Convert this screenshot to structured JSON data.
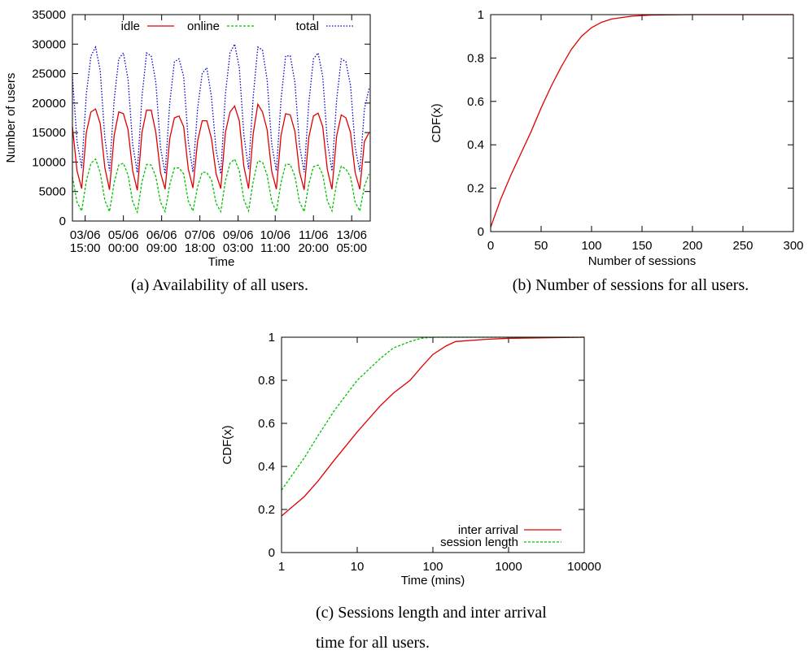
{
  "chart_data": [
    {
      "type": "line",
      "xlabel": "Time",
      "ylabel": "Number of users",
      "caption": "(a)  Availability of all users.",
      "xlim": [
        "03/06 04:00",
        "13/06 21:00"
      ],
      "xticks": [
        "03/06 15:00",
        "05/06 00:00",
        "06/06 09:00",
        "07/06 18:00",
        "09/06 03:00",
        "10/06 11:00",
        "11/06 20:00",
        "13/06 05:00"
      ],
      "ylim": [
        0,
        35000
      ],
      "yticks": [
        0,
        5000,
        10000,
        15000,
        20000,
        25000,
        30000,
        35000
      ],
      "legend": "top",
      "x": [
        "03/06 04:00",
        "03/06 08:00",
        "03/06 12:00",
        "03/06 16:00",
        "03/06 20:00",
        "04/06 00:00",
        "04/06 04:00",
        "04/06 08:00",
        "04/06 12:00",
        "04/06 16:00",
        "04/06 20:00",
        "05/06 00:00",
        "05/06 04:00",
        "05/06 08:00",
        "05/06 12:00",
        "05/06 16:00",
        "05/06 20:00",
        "06/06 00:00",
        "06/06 04:00",
        "06/06 08:00",
        "06/06 12:00",
        "06/06 16:00",
        "06/06 20:00",
        "07/06 00:00",
        "07/06 04:00",
        "07/06 08:00",
        "07/06 12:00",
        "07/06 16:00",
        "07/06 20:00",
        "08/06 00:00",
        "08/06 04:00",
        "08/06 08:00",
        "08/06 12:00",
        "08/06 16:00",
        "08/06 20:00",
        "09/06 00:00",
        "09/06 04:00",
        "09/06 08:00",
        "09/06 12:00",
        "09/06 16:00",
        "09/06 20:00",
        "10/06 00:00",
        "10/06 04:00",
        "10/06 08:00",
        "10/06 12:00",
        "10/06 16:00",
        "10/06 20:00",
        "11/06 00:00",
        "11/06 04:00",
        "11/06 08:00",
        "11/06 12:00",
        "11/06 16:00",
        "11/06 20:00",
        "12/06 00:00",
        "12/06 04:00",
        "12/06 08:00",
        "12/06 12:00",
        "12/06 16:00",
        "12/06 20:00",
        "13/06 00:00",
        "13/06 04:00",
        "13/06 08:00",
        "13/06 12:00",
        "13/06 16:00",
        "13/06 20:00"
      ],
      "series": [
        {
          "name": "idle",
          "color": "#e00000",
          "dash": "none",
          "values": [
            16000,
            8500,
            5500,
            15000,
            18500,
            19000,
            16500,
            9000,
            5300,
            14500,
            18500,
            18200,
            15500,
            8500,
            5200,
            15000,
            18800,
            18800,
            15000,
            8200,
            5400,
            14000,
            17500,
            17800,
            16000,
            8800,
            5600,
            13500,
            17000,
            17000,
            14000,
            8000,
            5500,
            15000,
            18500,
            19500,
            17000,
            9200,
            5500,
            14800,
            19800,
            18500,
            15500,
            8400,
            5400,
            14500,
            18200,
            18000,
            15200,
            8300,
            5300,
            14200,
            17800,
            18300,
            16000,
            8700,
            5400,
            14400,
            18000,
            17500,
            15000,
            8200,
            5400,
            13500,
            15000
          ]
        },
        {
          "name": "online",
          "color": "#00c000",
          "dash": "3,2",
          "values": [
            7500,
            3200,
            1700,
            6800,
            9800,
            10500,
            8200,
            3500,
            1600,
            6500,
            9500,
            9800,
            7800,
            3300,
            1500,
            6600,
            9600,
            9500,
            7500,
            3200,
            1600,
            6200,
            9000,
            9000,
            8000,
            3400,
            1700,
            5800,
            8300,
            8200,
            7000,
            3000,
            1600,
            6800,
            9800,
            10500,
            8500,
            3600,
            1700,
            6700,
            10200,
            10000,
            7800,
            3300,
            1600,
            6500,
            9600,
            9600,
            7600,
            3200,
            1600,
            6300,
            9200,
            9500,
            7900,
            3400,
            1700,
            6400,
            9300,
            8800,
            7500,
            3200,
            1700,
            5900,
            8000
          ]
        },
        {
          "name": "total",
          "color": "#0000d0",
          "dash": "1.5,2",
          "values": [
            24500,
            13500,
            9000,
            21500,
            28000,
            29500,
            25500,
            14000,
            8500,
            20500,
            27500,
            28500,
            24000,
            13000,
            8200,
            21000,
            28500,
            28000,
            23500,
            12500,
            8000,
            20000,
            27000,
            27500,
            24500,
            13500,
            8300,
            19000,
            25000,
            26000,
            21000,
            12000,
            8000,
            21500,
            28500,
            30000,
            26000,
            14500,
            8800,
            21000,
            29500,
            29000,
            24000,
            13000,
            8500,
            20500,
            28000,
            28000,
            23500,
            12800,
            8300,
            20000,
            27500,
            28500,
            24500,
            13500,
            8500,
            20500,
            27500,
            27000,
            23000,
            12500,
            8400,
            19000,
            22500
          ]
        }
      ]
    },
    {
      "type": "line",
      "xlabel": "Number of sessions",
      "ylabel": "CDF(x)",
      "caption": "(b)  Number of sessions for all users.",
      "xlim": [
        0,
        300
      ],
      "xticks": [
        0,
        50,
        100,
        150,
        200,
        250,
        300
      ],
      "ylim": [
        0,
        1
      ],
      "yticks": [
        0,
        0.2,
        0.4,
        0.6,
        0.8,
        1
      ],
      "x": [
        0,
        10,
        20,
        30,
        40,
        50,
        60,
        70,
        80,
        90,
        100,
        110,
        120,
        140,
        160,
        200,
        300
      ],
      "series": [
        {
          "name": null,
          "color": "#e00000",
          "dash": "none",
          "values": [
            0.02,
            0.15,
            0.26,
            0.36,
            0.46,
            0.57,
            0.67,
            0.76,
            0.84,
            0.9,
            0.94,
            0.965,
            0.98,
            0.993,
            0.998,
            1,
            1
          ]
        }
      ]
    },
    {
      "type": "line",
      "xlabel": "Time (mins)",
      "ylabel": "CDF(x)",
      "caption": [
        "(c)  Sessions length and inter arrival",
        "time for all users."
      ],
      "log_x": true,
      "xlim": [
        1,
        10000
      ],
      "xticks": [
        1,
        10,
        100,
        1000,
        10000
      ],
      "ylim": [
        0,
        1
      ],
      "yticks": [
        0,
        0.2,
        0.4,
        0.6,
        0.8,
        1
      ],
      "legend": "bottom-right",
      "series": [
        {
          "name": "inter arrival",
          "color": "#e00000",
          "dash": "none",
          "x": [
            1,
            2,
            3,
            5,
            10,
            20,
            30,
            50,
            70,
            100,
            150,
            200,
            500,
            1000,
            10000
          ],
          "values": [
            0.17,
            0.26,
            0.33,
            0.43,
            0.56,
            0.68,
            0.74,
            0.8,
            0.86,
            0.92,
            0.96,
            0.98,
            0.99,
            0.995,
            1
          ]
        },
        {
          "name": "session length",
          "color": "#00c000",
          "dash": "3,2",
          "x": [
            1,
            2,
            3,
            5,
            10,
            20,
            30,
            50,
            70,
            100,
            10000
          ],
          "values": [
            0.29,
            0.44,
            0.54,
            0.66,
            0.8,
            0.9,
            0.95,
            0.98,
            0.995,
            1,
            1
          ]
        }
      ]
    }
  ]
}
